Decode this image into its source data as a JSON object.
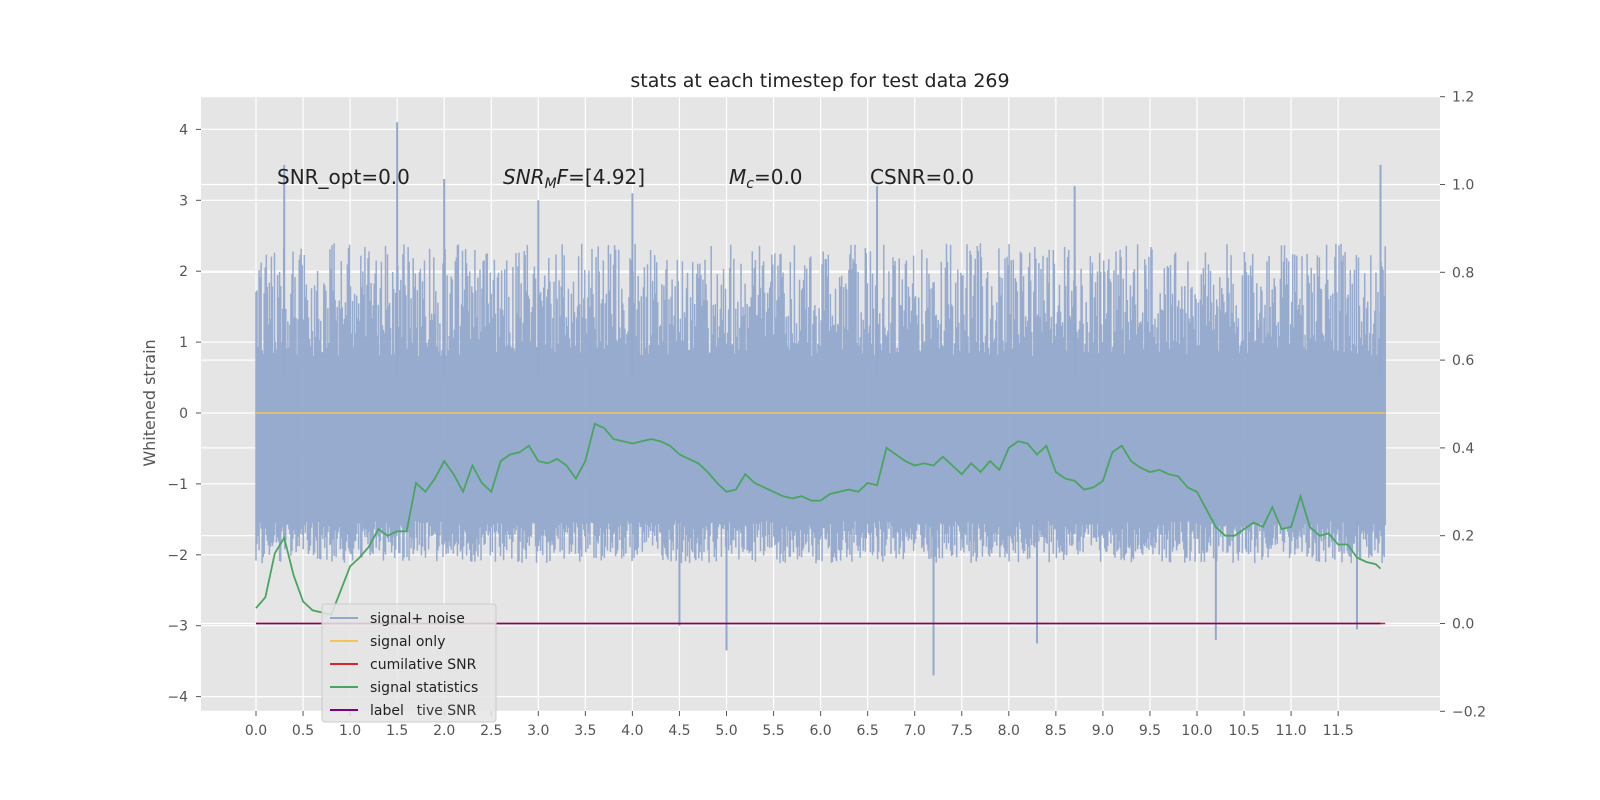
{
  "chart_data": {
    "type": "line",
    "title": "stats at each timestep for test data 269",
    "ylabel": "Whitened strain",
    "xlabel": "",
    "xlim": [
      -0.6,
      12.6
    ],
    "ylim": [
      -4.2,
      4.45
    ],
    "y2lim": [
      -0.2,
      1.2
    ],
    "grid": true,
    "x_ticks": [
      "0.0",
      "0.5",
      "1.0",
      "1.5",
      "2.0",
      "2.5",
      "3.0",
      "3.5",
      "4.0",
      "4.5",
      "5.0",
      "5.5",
      "6.0",
      "6.5",
      "7.0",
      "7.5",
      "8.0",
      "8.5",
      "9.0",
      "9.5",
      "10.0",
      "10.5",
      "11.0",
      "11.5"
    ],
    "y_ticks": [
      "4",
      "3",
      "2",
      "1",
      "0",
      "−1",
      "−2",
      "−3",
      "−4"
    ],
    "y_tick_values": [
      4,
      3,
      2,
      1,
      0,
      -1,
      -2,
      -3,
      -4
    ],
    "y2_ticks": [
      "1.2",
      "1.0",
      "0.8",
      "0.6",
      "0.4",
      "0.2",
      "0.0",
      "−0.2"
    ],
    "y2_tick_values": [
      1.2,
      1.0,
      0.8,
      0.6,
      0.4,
      0.2,
      0.0,
      -0.2
    ],
    "annotations": [
      {
        "text": "SNR_opt=0.0"
      },
      {
        "text": "SNR_MF=[4.92]"
      },
      {
        "text": "M_c=0.0"
      },
      {
        "text": "CSNR=0.0"
      }
    ],
    "legend": {
      "placement": "lower-left",
      "entries": [
        {
          "label": "signal+ noise",
          "color": "#92a8cd"
        },
        {
          "label": "signal only",
          "color": "#f2c45a"
        },
        {
          "label": "cumilative SNR",
          "color": "#d62728"
        },
        {
          "label": "signal statistics",
          "color": "#4aa561"
        },
        {
          "label": "label",
          "color": "#800080"
        }
      ],
      "occluded_text": "cumilative SNR"
    },
    "series": [
      {
        "name": "signal+ noise",
        "axis": "left",
        "x_range": [
          0,
          12
        ],
        "approx_band": [
          -1.8,
          1.0
        ],
        "outlier_peaks": [
          [
            0.3,
            3.5
          ],
          [
            1.5,
            4.1
          ],
          [
            2.0,
            3.3
          ],
          [
            3.0,
            3.0
          ],
          [
            4.0,
            3.1
          ],
          [
            6.6,
            3.2
          ],
          [
            8.7,
            3.2
          ],
          [
            11.95,
            3.5
          ]
        ],
        "outlier_troughs": [
          [
            4.5,
            -3.0
          ],
          [
            5.0,
            -3.35
          ],
          [
            7.2,
            -3.7
          ],
          [
            8.3,
            -3.25
          ],
          [
            10.2,
            -3.2
          ],
          [
            11.7,
            -3.05
          ]
        ]
      },
      {
        "name": "signal only",
        "axis": "left",
        "x": [
          0,
          12
        ],
        "values": [
          0,
          0
        ]
      },
      {
        "name": "cumilative SNR",
        "axis": "right",
        "x": [
          0,
          12
        ],
        "values": [
          0,
          0
        ]
      },
      {
        "name": "signal statistics",
        "axis": "right",
        "x": [
          0.0,
          0.1,
          0.2,
          0.3,
          0.4,
          0.5,
          0.6,
          0.8,
          1.0,
          1.1,
          1.2,
          1.3,
          1.4,
          1.5,
          1.6,
          1.7,
          1.8,
          1.9,
          2.0,
          2.1,
          2.2,
          2.3,
          2.4,
          2.5,
          2.6,
          2.7,
          2.8,
          2.9,
          3.0,
          3.1,
          3.2,
          3.3,
          3.4,
          3.5,
          3.6,
          3.7,
          3.8,
          3.9,
          4.0,
          4.1,
          4.2,
          4.3,
          4.4,
          4.5,
          4.6,
          4.7,
          4.8,
          4.9,
          5.0,
          5.1,
          5.2,
          5.3,
          5.4,
          5.5,
          5.6,
          5.7,
          5.8,
          5.9,
          6.0,
          6.1,
          6.2,
          6.3,
          6.4,
          6.5,
          6.6,
          6.7,
          6.8,
          6.9,
          7.0,
          7.1,
          7.2,
          7.3,
          7.4,
          7.5,
          7.6,
          7.7,
          7.8,
          7.9,
          8.0,
          8.1,
          8.2,
          8.3,
          8.4,
          8.5,
          8.6,
          8.7,
          8.8,
          8.9,
          9.0,
          9.1,
          9.2,
          9.3,
          9.4,
          9.5,
          9.6,
          9.7,
          9.8,
          9.9,
          10.0,
          10.1,
          10.2,
          10.3,
          10.4,
          10.5,
          10.6,
          10.7,
          10.8,
          10.9,
          11.0,
          11.1,
          11.2,
          11.3,
          11.4,
          11.5,
          11.6,
          11.7,
          11.8,
          11.9,
          11.95
        ],
        "values": [
          0.035,
          0.06,
          0.16,
          0.195,
          0.11,
          0.05,
          0.03,
          0.02,
          0.13,
          0.15,
          0.175,
          0.215,
          0.2,
          0.21,
          0.21,
          0.32,
          0.3,
          0.33,
          0.37,
          0.34,
          0.3,
          0.36,
          0.32,
          0.3,
          0.37,
          0.385,
          0.39,
          0.405,
          0.37,
          0.365,
          0.375,
          0.36,
          0.33,
          0.37,
          0.455,
          0.445,
          0.42,
          0.415,
          0.41,
          0.415,
          0.42,
          0.415,
          0.405,
          0.385,
          0.375,
          0.365,
          0.345,
          0.32,
          0.3,
          0.305,
          0.34,
          0.32,
          0.31,
          0.3,
          0.29,
          0.285,
          0.29,
          0.28,
          0.28,
          0.295,
          0.3,
          0.305,
          0.3,
          0.32,
          0.315,
          0.4,
          0.385,
          0.37,
          0.36,
          0.365,
          0.36,
          0.38,
          0.36,
          0.34,
          0.365,
          0.345,
          0.37,
          0.35,
          0.4,
          0.415,
          0.41,
          0.385,
          0.405,
          0.345,
          0.33,
          0.325,
          0.305,
          0.31,
          0.325,
          0.39,
          0.405,
          0.37,
          0.355,
          0.345,
          0.35,
          0.34,
          0.335,
          0.31,
          0.3,
          0.26,
          0.22,
          0.2,
          0.2,
          0.215,
          0.23,
          0.22,
          0.265,
          0.215,
          0.22,
          0.29,
          0.22,
          0.2,
          0.205,
          0.18,
          0.18,
          0.15,
          0.14,
          0.135,
          0.125
        ]
      },
      {
        "name": "label",
        "axis": "right",
        "x": [
          0,
          11.95
        ],
        "values": [
          0,
          0
        ]
      }
    ]
  }
}
